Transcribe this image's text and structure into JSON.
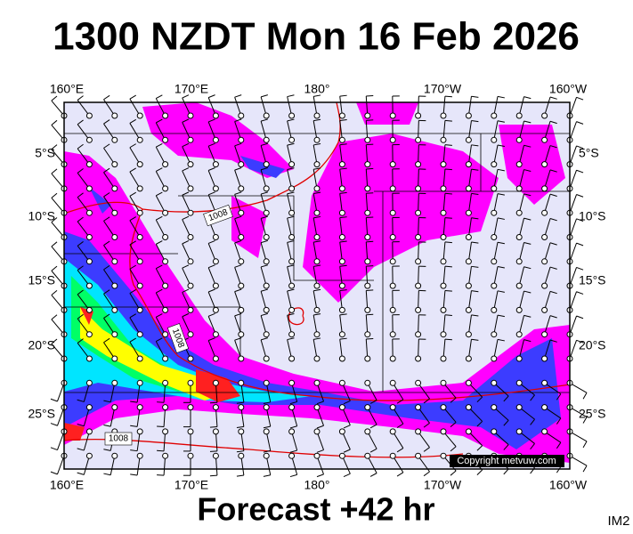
{
  "header": {
    "title": "1300 NZDT Mon 16 Feb 2026"
  },
  "map": {
    "longitude_labels_top": [
      "160°E",
      "170°E",
      "180°",
      "170°W",
      "160°W"
    ],
    "longitude_labels_bottom": [
      "160°E",
      "170°E",
      "180°",
      "170°W",
      "160°W"
    ],
    "latitude_labels_left": [
      "5°S",
      "10°S",
      "15°S",
      "20°S",
      "25°S"
    ],
    "latitude_labels_right": [
      "5°S",
      "10°S",
      "15°S",
      "20°S",
      "25°S"
    ],
    "contour_labels": [
      "1008",
      "1008",
      "1008"
    ],
    "copyright": "Copyright metvuw.com"
  },
  "footer": {
    "forecast": "Forecast +42 hr",
    "code": "IM2"
  }
}
